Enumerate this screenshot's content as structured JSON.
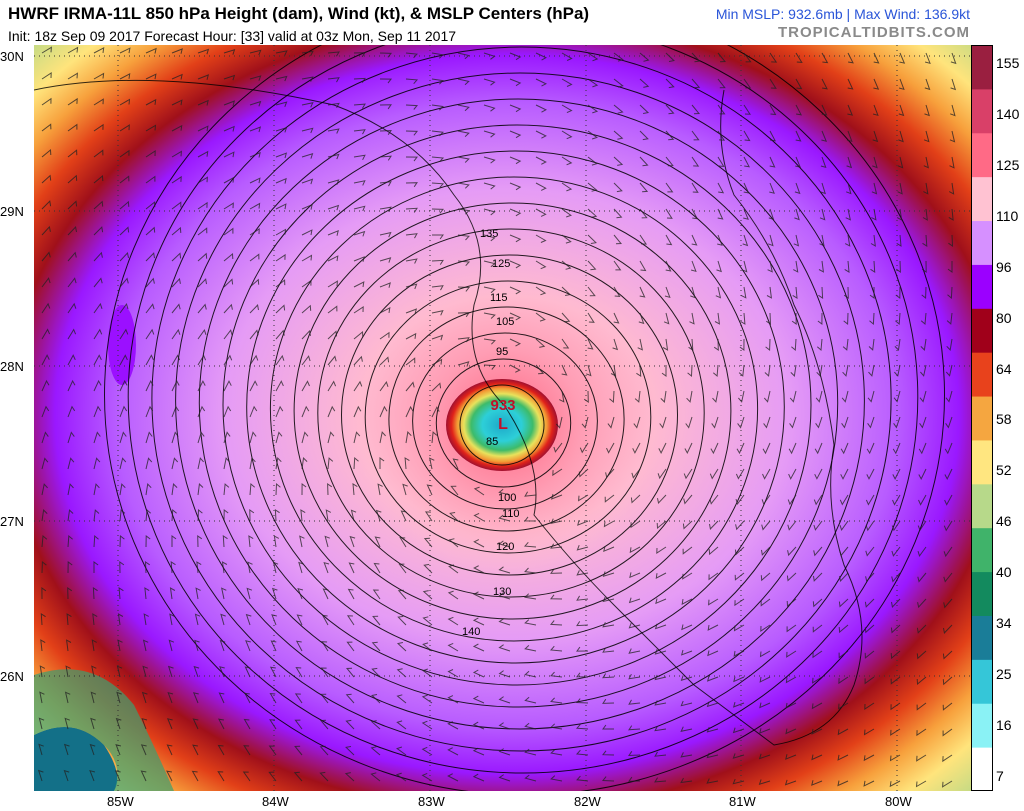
{
  "header": {
    "title": "HWRF IRMA-11L 850 hPa Height (dam), Wind (kt), & MSLP Centers (hPa)",
    "subtitle": "Init: 18z Sep 09 2017    Forecast Hour: [33]   valid at 03z Mon, Sep 11 2017",
    "stats": "Min MSLP: 932.6mb | Max Wind: 136.9kt",
    "brand": "TROPICALTIDBITS.COM"
  },
  "axes": {
    "lat_labels": [
      "30N",
      "29N",
      "28N",
      "27N",
      "26N"
    ],
    "lon_labels": [
      "85W",
      "84W",
      "83W",
      "82W",
      "81W",
      "80W"
    ]
  },
  "storm": {
    "pressure_label": "933",
    "low_label": "L",
    "contour_labels": [
      "85",
      "95",
      "100",
      "105",
      "110",
      "115",
      "120",
      "125",
      "130",
      "135",
      "140"
    ]
  },
  "colorbar": {
    "labels": [
      "155",
      "140",
      "125",
      "110",
      "96",
      "80",
      "64",
      "58",
      "52",
      "46",
      "40",
      "34",
      "25",
      "16",
      "7"
    ],
    "colors": [
      "#ffffff",
      "#8af2f5",
      "#35c6d8",
      "#1a7d98",
      "#138a5e",
      "#40b36a",
      "#b7d98a",
      "#ffe680",
      "#f5a640",
      "#e8421c",
      "#a0001a",
      "#9b00ff",
      "#d690ff",
      "#ffc2d2",
      "#ff6a86",
      "#d94068",
      "#9a1f40"
    ]
  }
}
